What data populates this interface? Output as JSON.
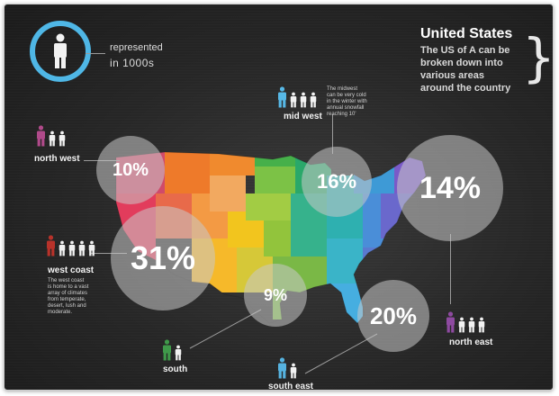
{
  "legend": {
    "label": "represented",
    "value": "in 1000s"
  },
  "header": {
    "title": "United States",
    "subtitle_lines": [
      "The US of A can be",
      "broken down into",
      "various areas",
      "around the country"
    ]
  },
  "regions": {
    "north_west": {
      "label": "north west",
      "percent": "10%",
      "people": 3
    },
    "mid_west": {
      "label": "mid west",
      "percent": "16%",
      "people": 4,
      "desc_lines": [
        "The midwest",
        "can be very cold",
        "in the winter with",
        "annual snowfall",
        "reaching 10'"
      ]
    },
    "north_east": {
      "label": "north east",
      "percent": "14%",
      "people": 4
    },
    "west_coast": {
      "label": "west coast",
      "percent": "31%",
      "people": 5,
      "desc_lines": [
        "The west coast",
        "is home to a vast",
        "array of climates",
        "from temperate,",
        "desert, lush and",
        "moderate."
      ]
    },
    "south": {
      "label": "south",
      "percent": "9%",
      "people": 2
    },
    "south_east": {
      "label": "south east",
      "percent": "20%",
      "people": 2
    }
  },
  "colors": {
    "legend_ring": "#4fb7e6",
    "person_white": "#f2f2f2",
    "north_west_accent": "#b04a8a",
    "mid_west_accent": "#57b8e6",
    "north_east_accent": "#8e4aa0",
    "west_coast_accent": "#b8322a",
    "south_accent": "#3f9a4a",
    "south_east_accent": "#56b3e0"
  },
  "icons": {
    "person": "person-icon",
    "brace": "right-brace-icon"
  }
}
